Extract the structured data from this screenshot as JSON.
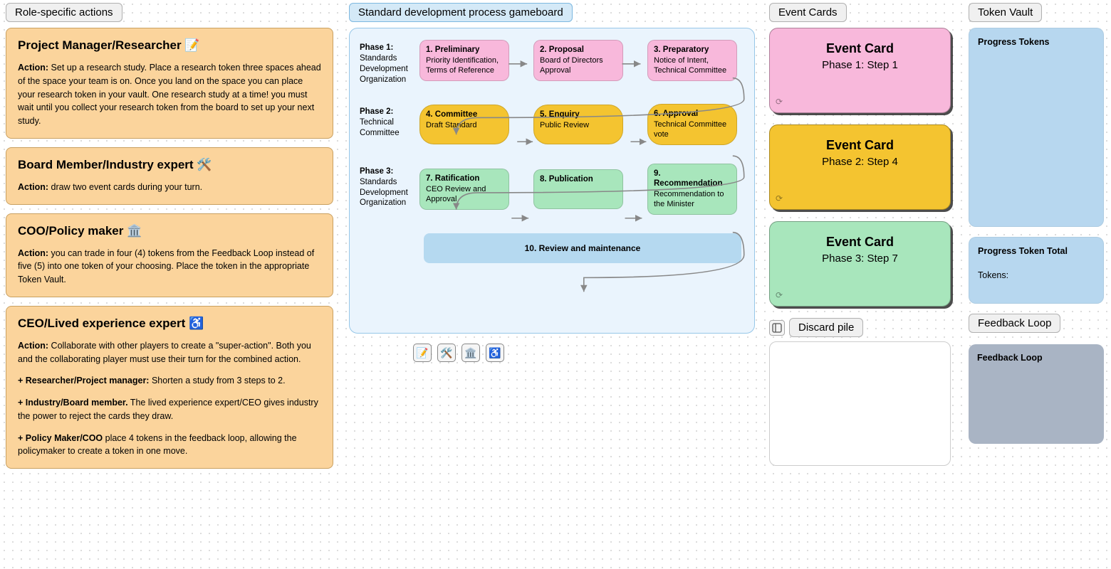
{
  "colors": {
    "role_card_bg": "#fbd49c",
    "pink": "#f8b8db",
    "gold": "#f4c430",
    "green": "#a8e6bc",
    "blue_light": "#b5d9f0",
    "panel_bg": "#eaf4fd",
    "token_box": "#b7d7ef",
    "feedback_box": "#a9b4c4"
  },
  "left": {
    "section_title": "Role-specific actions",
    "roles": [
      {
        "title": "Project Manager/Researcher 📝",
        "action_label": "Action:",
        "action_text": "Set up a research study. Place a research token three spaces ahead of the space your team is on. Once you land on the space you can place your research token in your vault. One research study at a time! you must wait until you collect your research token from the board to set up your next study."
      },
      {
        "title": "Board Member/Industry expert 🛠️",
        "action_label": "Action:",
        "action_text": "draw two event cards during your turn."
      },
      {
        "title": "COO/Policy maker 🏛️",
        "action_label": "Action:",
        "action_text": "you can trade in four (4) tokens from the Feedback Loop instead of five (5) into one token of your choosing. Place the token in the appropriate Token Vault."
      },
      {
        "title": "CEO/Lived experience expert ♿",
        "action_label": "Action:",
        "action_text": "Collaborate with other players to create a \"super-action\". Both you and the collaborating player must use their turn for the combined action.",
        "subs": [
          {
            "b": "+ Researcher/Project manager:",
            "t": " Shorten a study from 3 steps to 2."
          },
          {
            "b": "+ Industry/Board member.",
            "t": " The lived experience expert/CEO gives industry the power to reject the cards they draw."
          },
          {
            "b": "+ Policy Maker/COO",
            "t": " place 4 tokens in the feedback loop, allowing the policymaker to create a token in one move."
          }
        ]
      }
    ]
  },
  "gameboard": {
    "section_title": "Standard development process gameboard",
    "phases": [
      {
        "label_bold": "Phase 1:",
        "label_rest": "Standards Development Organization",
        "nodes": [
          {
            "title": "1. Preliminary",
            "body": "Priority Identification, Terms of Reference",
            "cls": "pink"
          },
          {
            "title": "2. Proposal",
            "body": "Board of Directors Approval",
            "cls": "pink"
          },
          {
            "title": "3. Preparatory",
            "body": "Notice of Intent, Technical Committee",
            "cls": "pink"
          }
        ]
      },
      {
        "label_bold": "Phase 2:",
        "label_rest": "Technical Committee",
        "nodes": [
          {
            "title": "4. Committee",
            "body": "Draft Standard",
            "cls": "gold"
          },
          {
            "title": "5. Enquiry",
            "body": "Public Review",
            "cls": "gold"
          },
          {
            "title": "6. Approval",
            "body": "Technical Committee vote",
            "cls": "gold"
          }
        ]
      },
      {
        "label_bold": "Phase 3:",
        "label_rest": "Standards Development Organization",
        "nodes": [
          {
            "title": "7. Ratification",
            "body": "CEO Review and Approval",
            "cls": "green"
          },
          {
            "title": "8. Publication",
            "body": "",
            "cls": "green"
          },
          {
            "title": "9. Recommendation",
            "body": "Recommendation to the Minister",
            "cls": "green"
          }
        ]
      }
    ],
    "review_label": "10. Review and maintenance",
    "token_icons": [
      "📝",
      "🛠️",
      "🏛️",
      "♿"
    ]
  },
  "event_cards": {
    "section_title": "Event Cards",
    "cards": [
      {
        "title": "Event Card",
        "sub": "Phase 1: Step 1",
        "cls": "ev-pink"
      },
      {
        "title": "Event Card",
        "sub": "Phase 2: Step 4",
        "cls": "ev-gold"
      },
      {
        "title": "Event Card",
        "sub": "Phase 3: Step 7",
        "cls": "ev-green"
      }
    ],
    "discard_label": "Discard pile"
  },
  "token_vault": {
    "section_title": "Token Vault",
    "progress_label": "Progress Tokens",
    "total_label": "Progress Token Total",
    "tokens_label": "Tokens:",
    "feedback_section": "Feedback Loop",
    "feedback_box_label": "Feedback Loop"
  }
}
